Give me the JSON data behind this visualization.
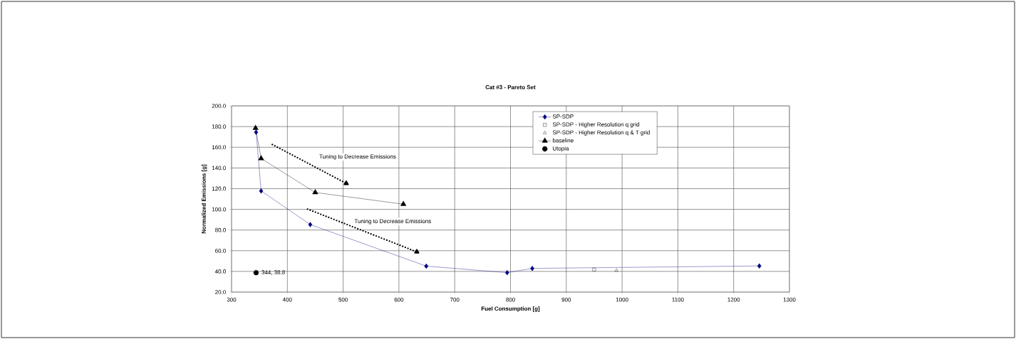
{
  "chart_data": {
    "type": "line",
    "title": "Cat #3 - Pareto Set",
    "xlabel": "Fuel Consumption [g]",
    "ylabel": "Normalized Emissions [g]",
    "xlim": [
      300,
      1300
    ],
    "xticks": [
      300,
      400,
      500,
      600,
      700,
      800,
      900,
      1000,
      1100,
      1200,
      1300
    ],
    "ylim": [
      20,
      200
    ],
    "yticks": [
      {
        "value": 20,
        "label": "20.0"
      },
      {
        "value": 40,
        "label": "40.0"
      },
      {
        "value": 60,
        "label": "60.0"
      },
      {
        "value": 80,
        "label": "80.0"
      },
      {
        "value": 100,
        "label": "100.0"
      },
      {
        "value": 120,
        "label": "120.0"
      },
      {
        "value": 140,
        "label": "140.0"
      },
      {
        "value": 160,
        "label": "160.0"
      },
      {
        "value": 180,
        "label": "180.0"
      },
      {
        "value": 200,
        "label": "200.0"
      }
    ],
    "grid": true,
    "legend": "top right",
    "series": [
      {
        "name": "SP-SDP",
        "marker": "diamond",
        "color": "#000080",
        "x": [
          344,
          353,
          441,
          649,
          794,
          839,
          1246
        ],
        "values": [
          174.5,
          117.8,
          85.3,
          45.1,
          38.8,
          42.9,
          45.3
        ]
      },
      {
        "name": "SP-SDP - Higher Resolution q grid",
        "type": "scatter",
        "marker": "square",
        "color": "#000000",
        "x": [
          950
        ],
        "values": [
          41.8
        ]
      },
      {
        "name": "SP-SDP - Higher Resolution q & T grid",
        "type": "scatter",
        "marker": "triangle",
        "color": "#000000",
        "x": [
          990
        ],
        "values": [
          40.9
        ]
      },
      {
        "name": "baseline",
        "marker": "triangle",
        "color": "#000000",
        "x": [
          343,
          353,
          450,
          608
        ],
        "values": [
          178.5,
          149.2,
          116.3,
          105.0
        ]
      },
      {
        "name": "Utopia",
        "type": "scatter",
        "marker": "circle",
        "color": "#000000",
        "x": [
          344
        ],
        "values": [
          38.8
        ],
        "value_labels": [
          "344, 38.8"
        ]
      },
      {
        "marker": "triangle",
        "line_style": "dotted",
        "color": "#000000",
        "x": [
          372,
          505.5
        ],
        "values": [
          163,
          125.1
        ]
      },
      {
        "marker": "triangle",
        "line_style": "dotted",
        "color": "#000000",
        "x": [
          435,
          632
        ],
        "values": [
          100.5,
          58.9
        ]
      }
    ],
    "annotations": [
      "Tuning to Decrease Emissions",
      "Tuning to Decrease Emissions"
    ]
  }
}
